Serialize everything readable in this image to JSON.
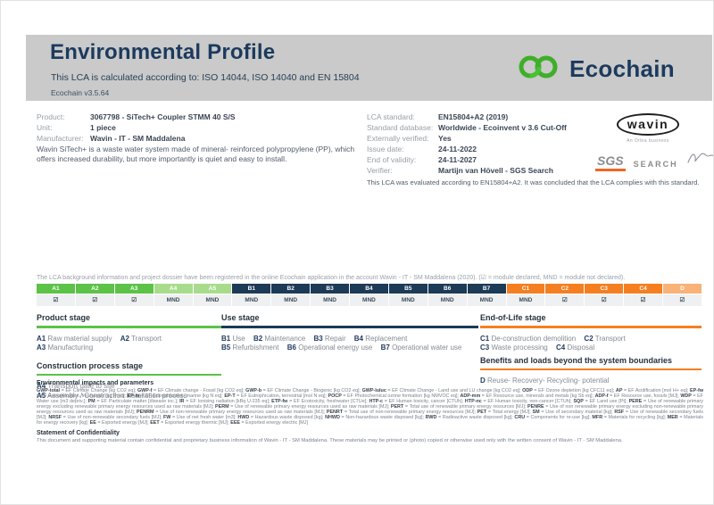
{
  "header": {
    "title": "Environmental Profile",
    "subtitle": "This LCA is calculated according to: ISO 14044, ISO 14040 and EN 15804",
    "version": "Ecochain v3.5.64",
    "logo_text": "Ecochain",
    "logo_green": "#3fae2a",
    "navy": "#1c3a5e"
  },
  "product_info": {
    "rows": [
      {
        "label": "Product:",
        "value": "3067798 - SiTech+ Coupler STMM 40 S/S"
      },
      {
        "label": "Unit:",
        "value": "1 piece"
      },
      {
        "label": "Manufacturer:",
        "value": "Wavin - IT - SM Maddalena"
      }
    ],
    "description": "Wavin SiTech+ is a waste water system made of mineral- reinforced polypropylene (PP), which offers increased durability, but more importantly is quiet and easy to install."
  },
  "lca_info": {
    "rows": [
      {
        "label": "LCA standard:",
        "value": "EN15804+A2 (2019)"
      },
      {
        "label": "Standard database:",
        "value": "Worldwide - Ecoinvent v 3.6 Cut-Off"
      },
      {
        "label": "Externally verified:",
        "value": "Yes"
      },
      {
        "label": "Issue date:",
        "value": "24-11-2022"
      },
      {
        "label": "End of validity:",
        "value": "24-11-2027"
      },
      {
        "label": "Verifier:",
        "value": "Martijn van Hövell - SGS Search"
      }
    ],
    "evaluation_note": "This LCA was evaluated according to EN15804+A2. It was concluded that the LCA complies with this standard."
  },
  "logos": {
    "wavin": "wavin",
    "wavin_sub": "An Orbia business",
    "sgs": "SGS",
    "search": "SEARCH"
  },
  "modules": {
    "intro": "The LCA background information and project dossier have been registered in the online Ecochain application in the account Wavin - IT - SM Maddalena (2020). (☑ = module declared, MND = module not declared).",
    "cells": [
      {
        "code": "A1",
        "mark": "☑"
      },
      {
        "code": "A2",
        "mark": "☑"
      },
      {
        "code": "A3",
        "mark": "☑"
      },
      {
        "code": "A4",
        "mark": "MND"
      },
      {
        "code": "A5",
        "mark": "MND"
      },
      {
        "code": "B1",
        "mark": "MND"
      },
      {
        "code": "B2",
        "mark": "MND"
      },
      {
        "code": "B3",
        "mark": "MND"
      },
      {
        "code": "B4",
        "mark": "MND"
      },
      {
        "code": "B5",
        "mark": "MND"
      },
      {
        "code": "B6",
        "mark": "MND"
      },
      {
        "code": "B7",
        "mark": "MND"
      },
      {
        "code": "C1",
        "mark": "MND"
      },
      {
        "code": "C2",
        "mark": "☑"
      },
      {
        "code": "C3",
        "mark": "☑"
      },
      {
        "code": "C4",
        "mark": "☑"
      },
      {
        "code": "D",
        "mark": "☑"
      }
    ]
  },
  "stages": {
    "product": {
      "title": "Product stage",
      "items": [
        {
          "code": "A1",
          "label": "Raw material supply"
        },
        {
          "code": "A2",
          "label": "Transport"
        },
        {
          "code": "A3",
          "label": "Manufacturing"
        }
      ]
    },
    "construction": {
      "title": "Construction process stage",
      "items": [
        {
          "code": "A4",
          "label": "Transport gate to site"
        },
        {
          "code": "A5",
          "label": "Assembly / Construction installation process"
        }
      ]
    },
    "use": {
      "title": "Use stage",
      "items": [
        {
          "code": "B1",
          "label": "Use"
        },
        {
          "code": "B2",
          "label": "Maintenance"
        },
        {
          "code": "B3",
          "label": "Repair"
        },
        {
          "code": "B4",
          "label": "Replacement"
        },
        {
          "code": "B5",
          "label": "Refurbishment"
        },
        {
          "code": "B6",
          "label": "Operational energy use"
        },
        {
          "code": "B7",
          "label": "Operational water use"
        }
      ]
    },
    "eol": {
      "title": "End-of-Life stage",
      "items": [
        {
          "code": "C1",
          "label": "De-construction demolition"
        },
        {
          "code": "C2",
          "label": "Transport"
        },
        {
          "code": "C3",
          "label": "Waste processing"
        },
        {
          "code": "C4",
          "label": "Disposal"
        }
      ]
    },
    "benefits": {
      "title": "Benefits and loads beyond the system boundaries",
      "items": [
        {
          "code": "D",
          "label": "Reuse- Recovery- Recycling- potential"
        }
      ]
    }
  },
  "impacts": {
    "title": "Environmental impacts and parameters",
    "text": "GWP-total = EF Climate Change [kg CO2 eq]; GWP-f = EF Climate change - Fossil [kg CO2 eq]; GWP-b = EF Climate Change - Biogenic [kg CO2 eq]; GWP-luluc = EF Climate Change - Land use and LU change [kg CO2 eq]; ODP = EF Ozone depletion [kg CFC11 eq]; AP = EF Acidification [mol H+ eq]; EP-fw = EF Eutrophication, freshwater [kg P eq]; EP-m = EF Eutrophication, marine [kg N eq]; EP-T = EF Eutrophication, terrestrial [mol N eq]; POCP = EF Photochemical ozone formation [kg NMVOC eq]; ADP-mm = EF Resource use, minerals and metals [kg Sb eq]; ADP-f = EF Resource use, fossils [MJ]; WDP = EF Water use [m3 depriv.]; PM = EF Particulate matter [disease inc.]; IR = EF Ionising radiation [kBq U-235 eq]; ETP-fw = EF Ecotoxicity, freshwater [CTUe]; HTP-c = EF Human toxicity, cancer [CTUh]; HTP-nc = EF Human toxicity, non-cancer [CTUh]; SQP = EF Land use [Pt]; PERE = Use of renewable primary energy excluding renewable primary energy resources used as raw materials [MJ]; PERM = Use of renewable primary energy resources used as raw materials [MJ]; PERT = Total use of renewable primary energy resources [MJ]; PENRE = Use of non renewable primary energy excluding non-renewable primary energy resources used as raw materials [MJ]; PENRM = Use of non-renewable primary energy resources used as raw materials [MJ]; PENRT = Total use of non-renewable primary energy resources [MJ]; PET = Total energy [MJ]; SM = Use of secondary material [kg]; RSF = Use of renewable secondary fuels [MJ]; NRSF = Use of non-renewable secondary fuels [MJ]; FW = Use of net fresh water [m3]; HWD = Hazardous waste disposed [kg]; NHWD = Non-hazardous waste disposed [kg]; RWD = Radioactive waste disposed [kg]; CRU = Components for re-use [kg]; MFR = Materials for recycling [kg]; MER = Materials for energy recovery [kg]; EE = Exported energy [MJ]; EET = Exported energy thermic [MJ]; EEE = Exported energy electric [MJ]"
  },
  "confidentiality": {
    "title": "Statement of Confidentiality",
    "text": "This document and supporting material contain confidential and proprietary business information of Wavin - IT - SM Maddalena. These materials may be printed or (photo) copied or otherwise used only with the written consent of Wavin - IT - SM Maddalena."
  }
}
